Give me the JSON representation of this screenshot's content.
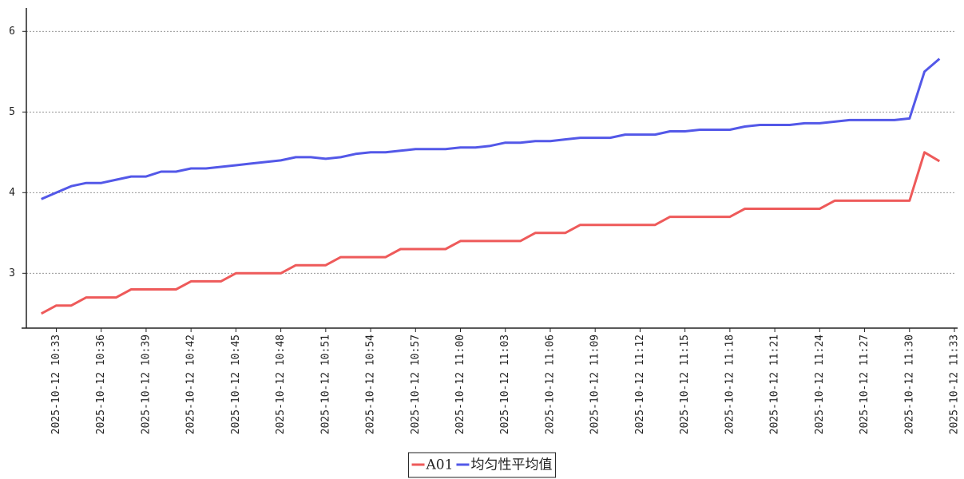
{
  "chart_data": {
    "type": "line",
    "x": [
      "2025-10-12 10:32",
      "2025-10-12 10:33",
      "2025-10-12 10:34",
      "2025-10-12 10:35",
      "2025-10-12 10:36",
      "2025-10-12 10:37",
      "2025-10-12 10:38",
      "2025-10-12 10:39",
      "2025-10-12 10:40",
      "2025-10-12 10:41",
      "2025-10-12 10:42",
      "2025-10-12 10:43",
      "2025-10-12 10:44",
      "2025-10-12 10:45",
      "2025-10-12 10:46",
      "2025-10-12 10:47",
      "2025-10-12 10:48",
      "2025-10-12 10:49",
      "2025-10-12 10:50",
      "2025-10-12 10:51",
      "2025-10-12 10:52",
      "2025-10-12 10:53",
      "2025-10-12 10:54",
      "2025-10-12 10:55",
      "2025-10-12 10:56",
      "2025-10-12 10:57",
      "2025-10-12 10:58",
      "2025-10-12 10:59",
      "2025-10-12 11:00",
      "2025-10-12 11:01",
      "2025-10-12 11:02",
      "2025-10-12 11:03",
      "2025-10-12 11:04",
      "2025-10-12 11:05",
      "2025-10-12 11:06",
      "2025-10-12 11:07",
      "2025-10-12 11:08",
      "2025-10-12 11:09",
      "2025-10-12 11:10",
      "2025-10-12 11:11",
      "2025-10-12 11:12",
      "2025-10-12 11:13",
      "2025-10-12 11:14",
      "2025-10-12 11:15",
      "2025-10-12 11:16",
      "2025-10-12 11:17",
      "2025-10-12 11:18",
      "2025-10-12 11:19",
      "2025-10-12 11:20",
      "2025-10-12 11:21",
      "2025-10-12 11:22",
      "2025-10-12 11:23",
      "2025-10-12 11:24",
      "2025-10-12 11:25",
      "2025-10-12 11:26",
      "2025-10-12 11:27",
      "2025-10-12 11:28",
      "2025-10-12 11:29",
      "2025-10-12 11:30",
      "2025-10-12 11:31",
      "2025-10-12 11:32"
    ],
    "series": [
      {
        "name": "A01",
        "color": "#ee5a5a",
        "values": [
          2.5,
          2.6,
          2.6,
          2.7,
          2.7,
          2.7,
          2.8,
          2.8,
          2.8,
          2.8,
          2.9,
          2.9,
          2.9,
          3.0,
          3.0,
          3.0,
          3.0,
          3.1,
          3.1,
          3.1,
          3.2,
          3.2,
          3.2,
          3.2,
          3.3,
          3.3,
          3.3,
          3.3,
          3.4,
          3.4,
          3.4,
          3.4,
          3.4,
          3.5,
          3.5,
          3.5,
          3.6,
          3.6,
          3.6,
          3.6,
          3.6,
          3.6,
          3.7,
          3.7,
          3.7,
          3.7,
          3.7,
          3.8,
          3.8,
          3.8,
          3.8,
          3.8,
          3.8,
          3.9,
          3.9,
          3.9,
          3.9,
          3.9,
          3.9,
          4.5,
          4.39
        ]
      },
      {
        "name": "均匀性平均值",
        "color": "#5358e8",
        "values": [
          3.92,
          4.0,
          4.08,
          4.12,
          4.12,
          4.16,
          4.2,
          4.2,
          4.26,
          4.26,
          4.3,
          4.3,
          4.32,
          4.34,
          4.36,
          4.38,
          4.4,
          4.44,
          4.44,
          4.42,
          4.44,
          4.48,
          4.5,
          4.5,
          4.52,
          4.54,
          4.54,
          4.54,
          4.56,
          4.56,
          4.58,
          4.62,
          4.62,
          4.64,
          4.64,
          4.66,
          4.68,
          4.68,
          4.68,
          4.72,
          4.72,
          4.72,
          4.76,
          4.76,
          4.78,
          4.78,
          4.78,
          4.82,
          4.84,
          4.84,
          4.84,
          4.86,
          4.86,
          4.88,
          4.9,
          4.9,
          4.9,
          4.9,
          4.92,
          5.5,
          5.66
        ]
      }
    ],
    "xlim": [
      "2025-10-12 10:31",
      "2025-10-12 11:33"
    ],
    "xticks": [
      "2025-10-12 10:33",
      "2025-10-12 10:36",
      "2025-10-12 10:39",
      "2025-10-12 10:42",
      "2025-10-12 10:45",
      "2025-10-12 10:48",
      "2025-10-12 10:51",
      "2025-10-12 10:54",
      "2025-10-12 10:57",
      "2025-10-12 11:00",
      "2025-10-12 11:03",
      "2025-10-12 11:06",
      "2025-10-12 11:09",
      "2025-10-12 11:12",
      "2025-10-12 11:15",
      "2025-10-12 11:18",
      "2025-10-12 11:21",
      "2025-10-12 11:24",
      "2025-10-12 11:27",
      "2025-10-12 11:30",
      "2025-10-12 11:33"
    ],
    "ylim": [
      2.32,
      6.29
    ],
    "yticks": [
      3,
      4,
      5,
      6
    ],
    "grid": true,
    "legend": "bottom"
  }
}
